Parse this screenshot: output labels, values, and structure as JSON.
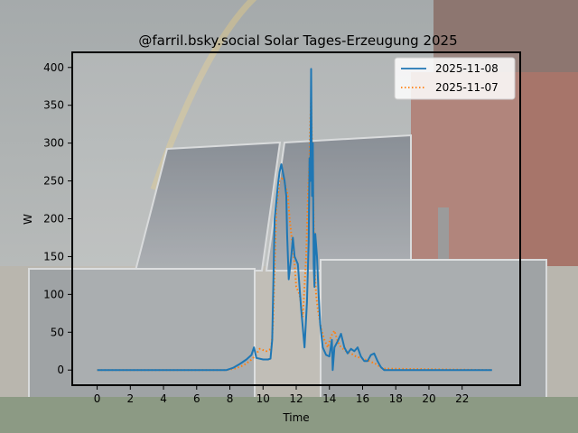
{
  "chart_data": {
    "type": "line",
    "title": "@farril.bsky.social Solar Tages-Erzeugung 2025",
    "xlabel": "Time",
    "ylabel": "W",
    "xlim": [
      -1.5,
      25.5
    ],
    "ylim": [
      -20,
      420
    ],
    "xticks": [
      0,
      2,
      4,
      6,
      8,
      10,
      12,
      14,
      16,
      18,
      20,
      22
    ],
    "yticks": [
      0,
      50,
      100,
      150,
      200,
      250,
      300,
      350,
      400
    ],
    "grid": false,
    "legend_position": "top-right",
    "background": "photo of solar panels on a brick house under a rainbow",
    "series": [
      {
        "name": "2025-11-08",
        "style": "solid",
        "color": "#1f77b4",
        "x": [
          0,
          7.8,
          8.2,
          8.6,
          9.0,
          9.3,
          9.45,
          9.6,
          10.0,
          10.3,
          10.45,
          10.55,
          10.7,
          10.9,
          11.0,
          11.1,
          11.3,
          11.4,
          11.45,
          11.55,
          11.7,
          11.8,
          11.9,
          12.1,
          12.3,
          12.5,
          12.65,
          12.75,
          12.8,
          12.85,
          12.9,
          12.95,
          13.0,
          13.05,
          13.1,
          13.15,
          13.25,
          13.35,
          13.45,
          13.6,
          13.8,
          14.0,
          14.15,
          14.2,
          14.3,
          14.5,
          14.7,
          14.9,
          15.1,
          15.3,
          15.5,
          15.7,
          15.9,
          16.1,
          16.3,
          16.5,
          16.7,
          16.9,
          17.1,
          17.3,
          23.8
        ],
        "y": [
          0,
          0,
          3,
          8,
          14,
          20,
          30,
          16,
          14,
          14,
          15,
          40,
          200,
          245,
          262,
          272,
          250,
          230,
          180,
          120,
          150,
          175,
          150,
          140,
          80,
          30,
          90,
          170,
          280,
          250,
          398,
          230,
          300,
          140,
          110,
          180,
          150,
          100,
          60,
          30,
          20,
          18,
          40,
          0,
          30,
          38,
          48,
          30,
          22,
          28,
          25,
          30,
          18,
          12,
          12,
          20,
          22,
          12,
          4,
          0,
          0
        ]
      },
      {
        "name": "2025-11-07",
        "style": "dotted",
        "color": "#ff7f0e",
        "x": [
          0,
          7.8,
          8.3,
          8.8,
          9.2,
          9.5,
          9.8,
          10.2,
          10.5,
          10.6,
          10.8,
          11.0,
          11.2,
          11.4,
          11.5,
          11.6,
          11.8,
          11.9,
          12.0,
          12.2,
          12.4,
          12.6,
          12.7,
          12.8,
          12.85,
          12.9,
          12.95,
          13.0,
          13.05,
          13.1,
          13.2,
          13.3,
          13.5,
          13.7,
          13.9,
          14.1,
          14.3,
          14.5,
          14.7,
          15.0,
          15.3,
          15.6,
          16.0,
          16.4,
          16.8,
          17.2,
          23.8
        ],
        "y": [
          0,
          0,
          2,
          6,
          12,
          18,
          28,
          25,
          28,
          60,
          215,
          250,
          255,
          240,
          230,
          200,
          160,
          140,
          110,
          100,
          70,
          150,
          230,
          280,
          330,
          360,
          300,
          260,
          200,
          140,
          100,
          80,
          55,
          40,
          30,
          45,
          52,
          38,
          30,
          25,
          22,
          18,
          15,
          12,
          8,
          2,
          0
        ]
      }
    ]
  }
}
